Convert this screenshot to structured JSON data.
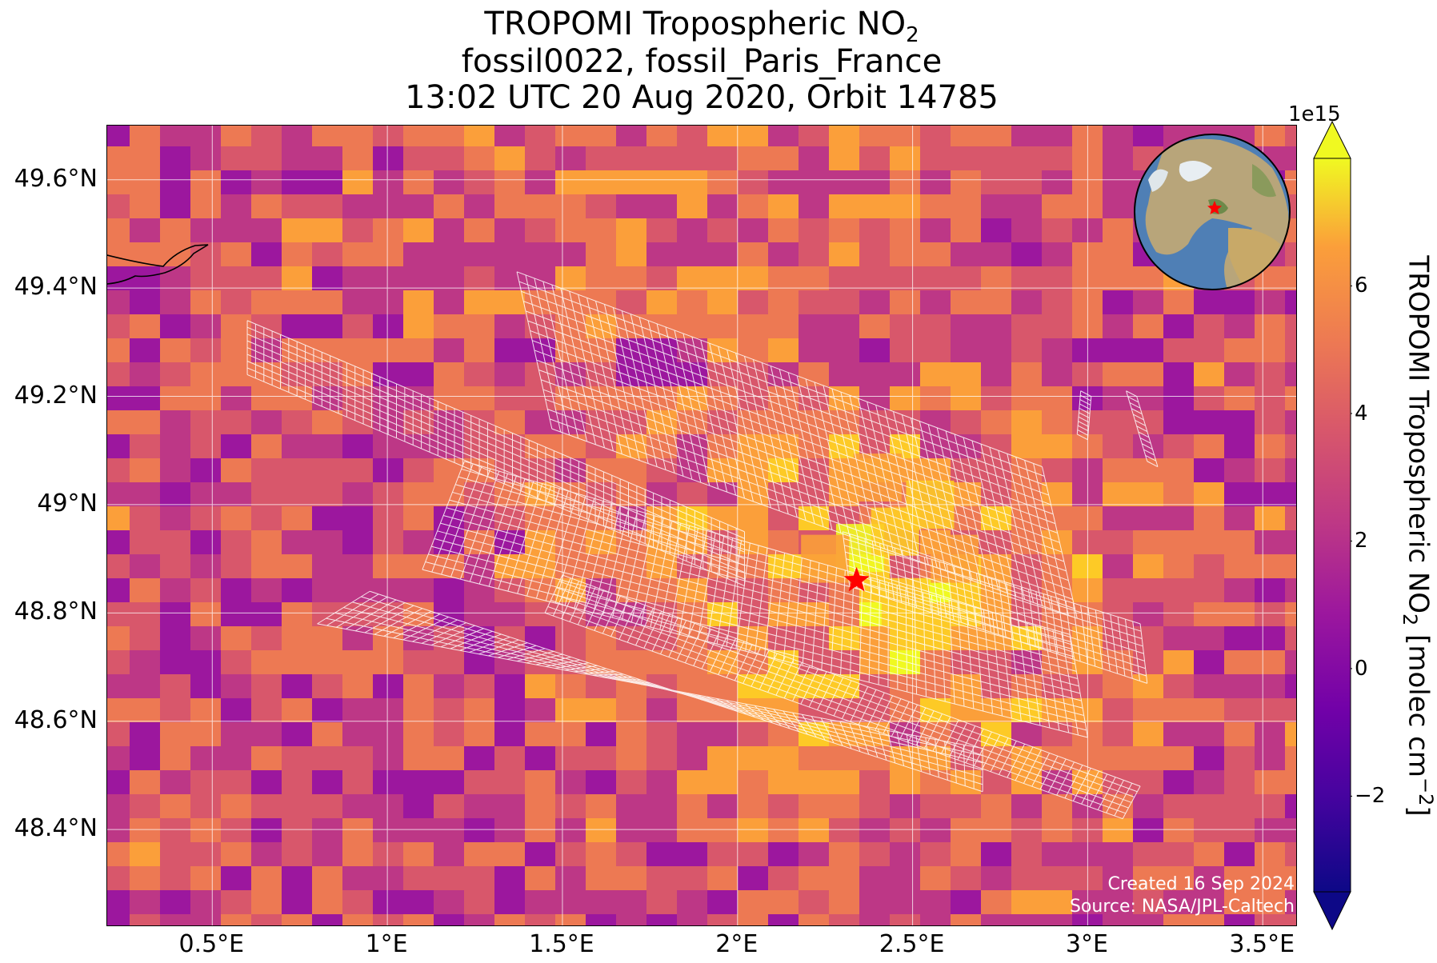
{
  "title": {
    "line1_main": "TROPOMI Tropospheric NO",
    "line1_sub": "2",
    "line2": "fossil0022, fossil_Paris_France",
    "line3": "13:02 UTC 20 Aug 2020, Orbit 14785"
  },
  "map": {
    "lon_range": [
      0.2,
      3.6
    ],
    "lat_range": [
      48.22,
      49.7
    ],
    "lat_ticks": [
      {
        "value": 49.6,
        "label": "49.6°N"
      },
      {
        "value": 49.4,
        "label": "49.4°N"
      },
      {
        "value": 49.2,
        "label": "49.2°N"
      },
      {
        "value": 49.0,
        "label": "49°N"
      },
      {
        "value": 48.8,
        "label": "48.8°N"
      },
      {
        "value": 48.6,
        "label": "48.6°N"
      },
      {
        "value": 48.4,
        "label": "48.4°N"
      }
    ],
    "lon_ticks": [
      {
        "value": 0.5,
        "label": "0.5°E"
      },
      {
        "value": 1.0,
        "label": "1°E"
      },
      {
        "value": 1.5,
        "label": "1.5°E"
      },
      {
        "value": 2.0,
        "label": "2°E"
      },
      {
        "value": 2.5,
        "label": "2.5°E"
      },
      {
        "value": 3.0,
        "label": "3°E"
      },
      {
        "value": 3.5,
        "label": "3.5°E"
      }
    ],
    "target_marker": {
      "lon": 2.34,
      "lat": 48.86,
      "color": "#ff0000",
      "symbol": "star"
    },
    "colormap": "plasma",
    "gridlines": true
  },
  "colorbar": {
    "exponent_label": "1e15",
    "range": [
      -3.5,
      8.0
    ],
    "ticks": [
      "6",
      "4",
      "2",
      "0",
      "−2"
    ],
    "label_main": "TROPOMI Tropospheric NO",
    "label_sub": "2",
    "label_units_pre": " [molec cm",
    "label_units_sup": "−2",
    "label_units_post": "]"
  },
  "credits": {
    "created": "Created 16 Sep 2024",
    "source": "Source: NASA/JPL-Caltech"
  },
  "colors": {
    "star": "#ff0000",
    "grid": "#ffffff",
    "ocean": "#5a86b8",
    "land": "#b8a070"
  },
  "icons": {
    "globe_inset": "globe-icon",
    "target": "star-icon"
  }
}
